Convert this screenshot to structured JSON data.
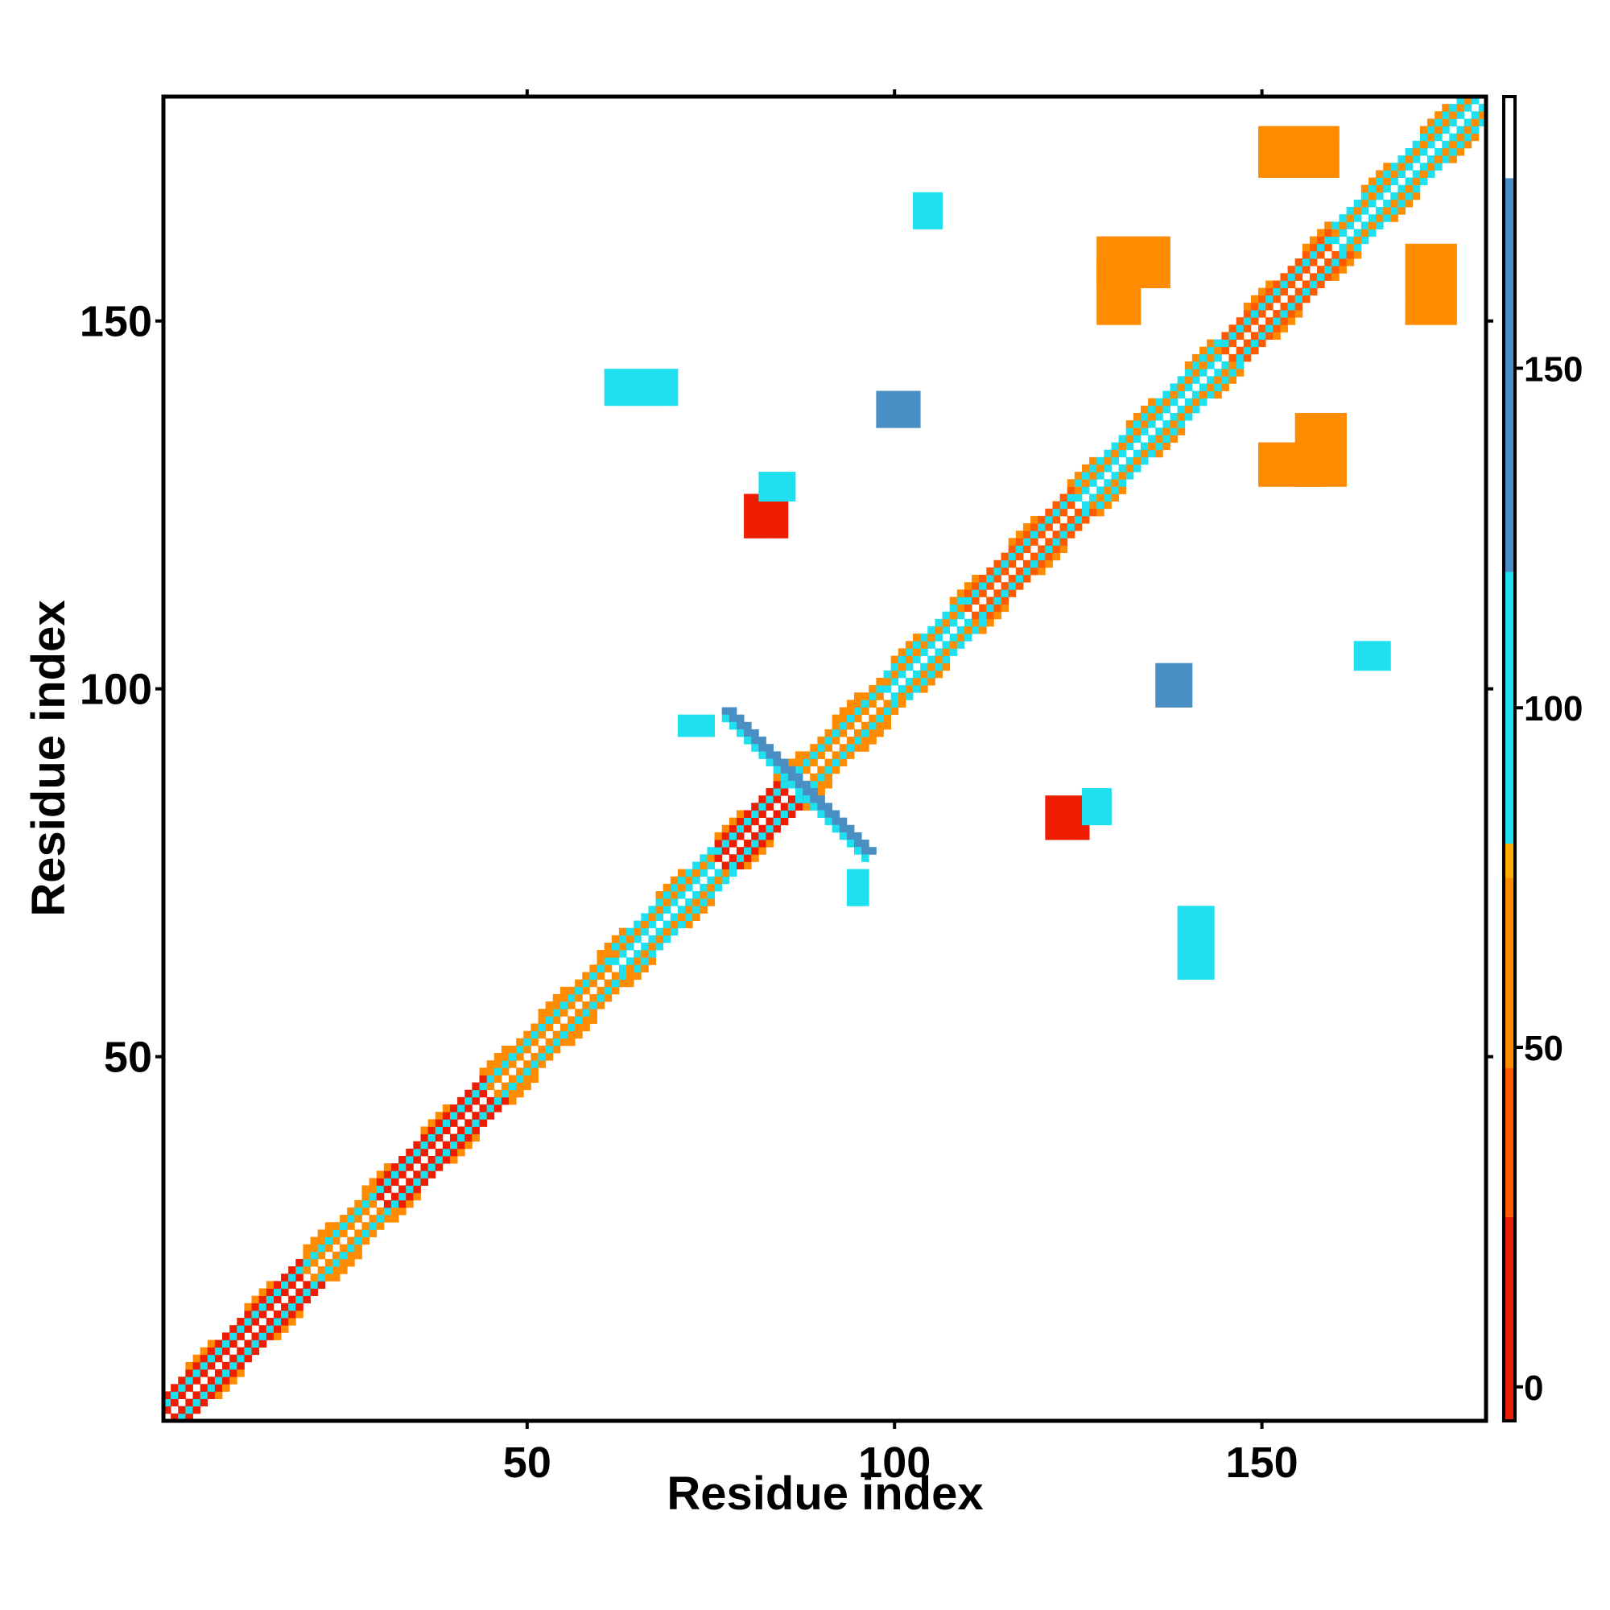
{
  "chart_data": {
    "type": "heatmap",
    "title": "",
    "xlabel": "Residue index",
    "ylabel": "Residue index",
    "xlim": [
      0.5,
      180.5
    ],
    "ylim": [
      0.5,
      180.5
    ],
    "x_ticks": [
      50,
      100,
      150
    ],
    "y_ticks": [
      50,
      100,
      150
    ],
    "grid": false,
    "colorbar": {
      "ticks": [
        0,
        50,
        100,
        150
      ],
      "range": [
        -5,
        190
      ],
      "stops": [
        {
          "from": -5,
          "to": 25,
          "color": "#ee1c00"
        },
        {
          "from": 25,
          "to": 47,
          "color": "#ff5a00"
        },
        {
          "from": 47,
          "to": 75,
          "color": "#ff8c00"
        },
        {
          "from": 75,
          "to": 80,
          "color": "#ffab00"
        },
        {
          "from": 80,
          "to": 120,
          "color": "#1ee0ee"
        },
        {
          "from": 120,
          "to": 178,
          "color": "#4a8fc4"
        },
        {
          "from": 178,
          "to": 190,
          "color": "#ffffff"
        }
      ]
    },
    "colors": {
      "red": "#ee1c00",
      "red_orange": "#ff5a00",
      "orange": "#ff8c00",
      "cyan": "#1ee0ee",
      "steel_blue": "#4a8fc4"
    },
    "diagonal_segments": [
      {
        "from": 1,
        "to": 20,
        "color": "red"
      },
      {
        "from": 20,
        "to": 30,
        "color": "orange"
      },
      {
        "from": 30,
        "to": 45,
        "color": "red"
      },
      {
        "from": 45,
        "to": 62,
        "color": "orange"
      },
      {
        "from": 62,
        "to": 76,
        "color": "cyan"
      },
      {
        "from": 76,
        "to": 86,
        "color": "red"
      },
      {
        "from": 86,
        "to": 99,
        "color": "orange"
      },
      {
        "from": 99,
        "to": 110,
        "color": "cyan"
      },
      {
        "from": 110,
        "to": 125,
        "color": "red_orange"
      },
      {
        "from": 125,
        "to": 145,
        "color": "cyan"
      },
      {
        "from": 145,
        "to": 160,
        "color": "red_orange"
      },
      {
        "from": 160,
        "to": 180,
        "color": "cyan"
      }
    ],
    "contact_blocks": [
      {
        "x": [
          80,
          85
        ],
        "y": [
          121,
          126
        ],
        "color": "red"
      },
      {
        "x": [
          121,
          126
        ],
        "y": [
          80,
          85
        ],
        "color": "red"
      },
      {
        "x": [
          82,
          86
        ],
        "y": [
          126,
          129
        ],
        "color": "cyan"
      },
      {
        "x": [
          126,
          129
        ],
        "y": [
          82,
          86
        ],
        "color": "cyan"
      },
      {
        "x": [
          103,
          106
        ],
        "y": [
          163,
          167
        ],
        "color": "cyan"
      },
      {
        "x": [
          163,
          167
        ],
        "y": [
          103,
          106
        ],
        "color": "cyan"
      },
      {
        "x": [
          61,
          70
        ],
        "y": [
          139,
          143
        ],
        "color": "cyan"
      },
      {
        "x": [
          139,
          143
        ],
        "y": [
          61,
          70
        ],
        "color": "cyan"
      },
      {
        "x": [
          128,
          137
        ],
        "y": [
          155,
          161
        ],
        "color": "orange"
      },
      {
        "x": [
          155,
          161
        ],
        "y": [
          128,
          137
        ],
        "color": "orange"
      },
      {
        "x": [
          150,
          158
        ],
        "y": [
          128,
          133
        ],
        "color": "orange"
      },
      {
        "x": [
          128,
          133
        ],
        "y": [
          150,
          158
        ],
        "color": "orange"
      },
      {
        "x": [
          150,
          160
        ],
        "y": [
          170,
          176
        ],
        "color": "orange"
      },
      {
        "x": [
          170,
          176
        ],
        "y": [
          150,
          160
        ],
        "color": "orange"
      },
      {
        "x": [
          98,
          103
        ],
        "y": [
          136,
          140
        ],
        "color": "steel_blue"
      },
      {
        "x": [
          136,
          140
        ],
        "y": [
          98,
          103
        ],
        "color": "steel_blue"
      },
      {
        "x": [
          94,
          96
        ],
        "y": [
          71,
          75
        ],
        "color": "cyan"
      },
      {
        "x": [
          71,
          75
        ],
        "y": [
          94,
          96
        ],
        "color": "cyan"
      }
    ],
    "antidiagonal": {
      "x": [
        77,
        96
      ],
      "y": [
        97,
        78
      ],
      "color": "steel_blue"
    }
  }
}
